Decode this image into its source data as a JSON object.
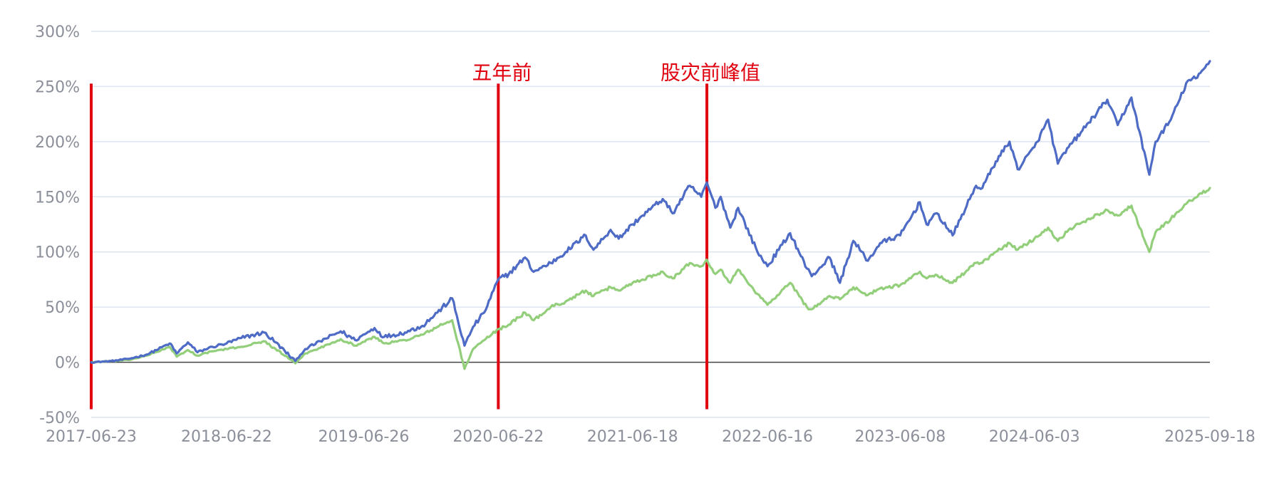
{
  "chart_data": {
    "type": "line",
    "title": "",
    "xlabel": "",
    "ylabel": "",
    "ylim": [
      -50,
      300
    ],
    "y_ticks": [
      -50,
      0,
      50,
      100,
      150,
      200,
      250,
      300
    ],
    "y_tick_labels": [
      "-50%",
      "0%",
      "50%",
      "100%",
      "150%",
      "200%",
      "250%",
      "300%"
    ],
    "x_start": "2017-06-23",
    "x_end": "2025-09-18",
    "x_tick_labels": [
      {
        "date": "2017-06-23",
        "label": "2017-06-23"
      },
      {
        "date": "2018-06-22",
        "label": "2018-06-22"
      },
      {
        "date": "2019-06-26",
        "label": "2019-06-26"
      },
      {
        "date": "2020-06-22",
        "label": "2020-06-22"
      },
      {
        "date": "2021-06-18",
        "label": "2021-06-18"
      },
      {
        "date": "2022-06-16",
        "label": "2022-06-16"
      },
      {
        "date": "2023-06-08",
        "label": "2023-06-08"
      },
      {
        "date": "2024-06-03",
        "label": "2024-06-03"
      },
      {
        "date": "2025-09-18",
        "label": "2025-09-18"
      }
    ],
    "series": [
      {
        "name": "series-blue",
        "color": "#4e6bc6",
        "points": [
          [
            "2017-06-23",
            0
          ],
          [
            "2017-08-15",
            1
          ],
          [
            "2017-10-01",
            3
          ],
          [
            "2017-11-20",
            7
          ],
          [
            "2018-01-20",
            17
          ],
          [
            "2018-02-08",
            8
          ],
          [
            "2018-03-10",
            18
          ],
          [
            "2018-04-05",
            9
          ],
          [
            "2018-05-15",
            14
          ],
          [
            "2018-06-22",
            17
          ],
          [
            "2018-08-01",
            22
          ],
          [
            "2018-10-01",
            27
          ],
          [
            "2018-11-01",
            18
          ],
          [
            "2018-12-24",
            1
          ],
          [
            "2019-01-20",
            12
          ],
          [
            "2019-03-01",
            19
          ],
          [
            "2019-04-25",
            28
          ],
          [
            "2019-06-03",
            20
          ],
          [
            "2019-07-25",
            31
          ],
          [
            "2019-08-20",
            23
          ],
          [
            "2019-10-15",
            27
          ],
          [
            "2019-12-01",
            33
          ],
          [
            "2020-01-10",
            45
          ],
          [
            "2020-02-19",
            58
          ],
          [
            "2020-03-23",
            15
          ],
          [
            "2020-04-15",
            32
          ],
          [
            "2020-05-15",
            45
          ],
          [
            "2020-06-22",
            75
          ],
          [
            "2020-07-20",
            80
          ],
          [
            "2020-09-02",
            95
          ],
          [
            "2020-09-25",
            82
          ],
          [
            "2020-11-10",
            90
          ],
          [
            "2020-12-20",
            100
          ],
          [
            "2021-02-12",
            115
          ],
          [
            "2021-03-05",
            102
          ],
          [
            "2021-04-20",
            120
          ],
          [
            "2021-05-12",
            112
          ],
          [
            "2021-06-18",
            125
          ],
          [
            "2021-07-15",
            133
          ],
          [
            "2021-09-07",
            148
          ],
          [
            "2021-10-04",
            135
          ],
          [
            "2021-11-19",
            160
          ],
          [
            "2021-12-20",
            150
          ],
          [
            "2022-01-04",
            163
          ],
          [
            "2022-01-27",
            140
          ],
          [
            "2022-02-10",
            150
          ],
          [
            "2022-03-08",
            122
          ],
          [
            "2022-03-29",
            140
          ],
          [
            "2022-05-20",
            100
          ],
          [
            "2022-06-16",
            87
          ],
          [
            "2022-08-16",
            117
          ],
          [
            "2022-09-30",
            85
          ],
          [
            "2022-10-13",
            78
          ],
          [
            "2022-11-30",
            95
          ],
          [
            "2022-12-28",
            72
          ],
          [
            "2023-02-02",
            110
          ],
          [
            "2023-03-13",
            92
          ],
          [
            "2023-04-15",
            108
          ],
          [
            "2023-06-08",
            115
          ],
          [
            "2023-07-31",
            145
          ],
          [
            "2023-08-18",
            125
          ],
          [
            "2023-09-15",
            135
          ],
          [
            "2023-10-27",
            115
          ],
          [
            "2023-12-29",
            160
          ],
          [
            "2024-01-15",
            158
          ],
          [
            "2024-02-20",
            182
          ],
          [
            "2024-03-28",
            200
          ],
          [
            "2024-04-19",
            175
          ],
          [
            "2024-06-03",
            195
          ],
          [
            "2024-07-10",
            220
          ],
          [
            "2024-08-05",
            180
          ],
          [
            "2024-09-03",
            195
          ],
          [
            "2024-10-10",
            210
          ],
          [
            "2024-12-16",
            238
          ],
          [
            "2025-01-13",
            215
          ],
          [
            "2025-02-19",
            240
          ],
          [
            "2025-04-08",
            170
          ],
          [
            "2025-04-25",
            200
          ],
          [
            "2025-06-05",
            220
          ],
          [
            "2025-07-20",
            255
          ],
          [
            "2025-08-15",
            258
          ],
          [
            "2025-09-18",
            273
          ]
        ]
      },
      {
        "name": "series-green",
        "color": "#93cf7a",
        "points": [
          [
            "2017-06-23",
            0
          ],
          [
            "2017-08-15",
            1
          ],
          [
            "2017-10-01",
            2
          ],
          [
            "2017-11-20",
            6
          ],
          [
            "2018-01-20",
            14
          ],
          [
            "2018-02-08",
            5
          ],
          [
            "2018-03-10",
            11
          ],
          [
            "2018-04-05",
            6
          ],
          [
            "2018-05-15",
            10
          ],
          [
            "2018-06-22",
            12
          ],
          [
            "2018-08-01",
            14
          ],
          [
            "2018-10-01",
            19
          ],
          [
            "2018-11-01",
            12
          ],
          [
            "2018-12-24",
            -1
          ],
          [
            "2019-01-20",
            8
          ],
          [
            "2019-03-01",
            13
          ],
          [
            "2019-04-25",
            21
          ],
          [
            "2019-06-03",
            15
          ],
          [
            "2019-07-25",
            23
          ],
          [
            "2019-08-20",
            17
          ],
          [
            "2019-10-15",
            20
          ],
          [
            "2019-12-01",
            25
          ],
          [
            "2020-01-10",
            32
          ],
          [
            "2020-02-19",
            38
          ],
          [
            "2020-03-23",
            -6
          ],
          [
            "2020-04-15",
            12
          ],
          [
            "2020-05-15",
            20
          ],
          [
            "2020-06-22",
            30
          ],
          [
            "2020-07-20",
            34
          ],
          [
            "2020-09-02",
            45
          ],
          [
            "2020-09-25",
            38
          ],
          [
            "2020-11-10",
            50
          ],
          [
            "2020-12-20",
            55
          ],
          [
            "2021-02-12",
            65
          ],
          [
            "2021-03-05",
            60
          ],
          [
            "2021-04-20",
            68
          ],
          [
            "2021-05-12",
            65
          ],
          [
            "2021-06-18",
            72
          ],
          [
            "2021-07-15",
            75
          ],
          [
            "2021-09-07",
            82
          ],
          [
            "2021-10-04",
            76
          ],
          [
            "2021-11-19",
            90
          ],
          [
            "2021-12-20",
            87
          ],
          [
            "2022-01-04",
            93
          ],
          [
            "2022-01-27",
            80
          ],
          [
            "2022-02-10",
            84
          ],
          [
            "2022-03-08",
            72
          ],
          [
            "2022-03-29",
            84
          ],
          [
            "2022-05-20",
            62
          ],
          [
            "2022-06-16",
            52
          ],
          [
            "2022-08-16",
            72
          ],
          [
            "2022-09-30",
            50
          ],
          [
            "2022-10-13",
            48
          ],
          [
            "2022-11-30",
            60
          ],
          [
            "2022-12-28",
            57
          ],
          [
            "2023-02-02",
            68
          ],
          [
            "2023-03-13",
            61
          ],
          [
            "2023-04-15",
            67
          ],
          [
            "2023-06-08",
            70
          ],
          [
            "2023-07-31",
            82
          ],
          [
            "2023-08-18",
            76
          ],
          [
            "2023-09-15",
            79
          ],
          [
            "2023-10-27",
            72
          ],
          [
            "2023-12-29",
            90
          ],
          [
            "2024-01-15",
            90
          ],
          [
            "2024-02-20",
            100
          ],
          [
            "2024-03-28",
            108
          ],
          [
            "2024-04-19",
            102
          ],
          [
            "2024-06-03",
            112
          ],
          [
            "2024-07-10",
            122
          ],
          [
            "2024-08-05",
            110
          ],
          [
            "2024-09-03",
            120
          ],
          [
            "2024-10-10",
            127
          ],
          [
            "2024-12-16",
            138
          ],
          [
            "2025-01-13",
            133
          ],
          [
            "2025-02-19",
            142
          ],
          [
            "2025-04-08",
            100
          ],
          [
            "2025-04-25",
            118
          ],
          [
            "2025-06-05",
            130
          ],
          [
            "2025-07-20",
            145
          ],
          [
            "2025-08-15",
            150
          ],
          [
            "2025-09-18",
            158
          ]
        ]
      }
    ],
    "annotations": [
      {
        "date": "2017-06-23",
        "label": "",
        "color": "#e00010"
      },
      {
        "date": "2020-06-22",
        "label": "五年前",
        "color": "#e00010"
      },
      {
        "date": "2022-01-04",
        "label": "股灾前峰值",
        "color": "#e00010"
      }
    ]
  }
}
